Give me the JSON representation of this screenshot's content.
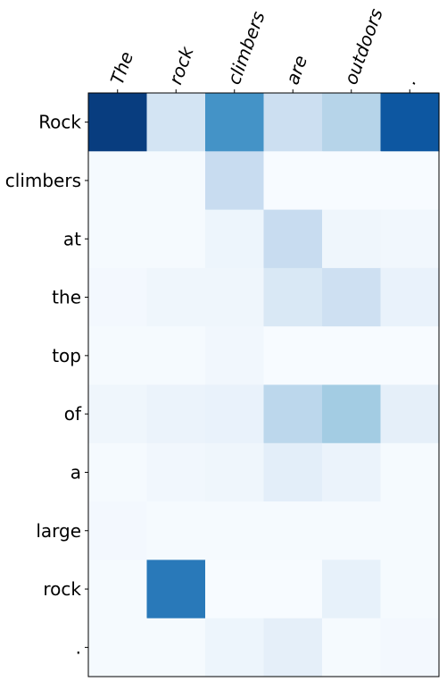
{
  "chart_data": {
    "type": "heatmap",
    "x_labels": [
      "The",
      "rock",
      "climbers",
      "are",
      "outdoors",
      "."
    ],
    "y_labels": [
      "Rock",
      "climbers",
      "at",
      "the",
      "top",
      "of",
      "a",
      "large",
      "rock",
      "."
    ],
    "values": [
      [
        0.95,
        0.18,
        0.62,
        0.22,
        0.3,
        0.85
      ],
      [
        0.01,
        0.01,
        0.24,
        0.0,
        0.0,
        0.0
      ],
      [
        0.01,
        0.01,
        0.05,
        0.24,
        0.04,
        0.03
      ],
      [
        0.02,
        0.04,
        0.04,
        0.15,
        0.21,
        0.07
      ],
      [
        0.01,
        0.01,
        0.03,
        0.0,
        0.0,
        0.0
      ],
      [
        0.04,
        0.06,
        0.07,
        0.28,
        0.36,
        0.09
      ],
      [
        0.01,
        0.03,
        0.04,
        0.1,
        0.06,
        0.01
      ],
      [
        0.02,
        0.01,
        0.01,
        0.01,
        0.01,
        0.01
      ],
      [
        0.01,
        0.72,
        0.0,
        0.0,
        0.08,
        0.01
      ],
      [
        0.01,
        0.01,
        0.05,
        0.09,
        0.01,
        0.02
      ]
    ],
    "colormap": "Blues",
    "value_range": [
      0,
      1
    ],
    "x_tick_position": "top",
    "x_tick_rotation_deg": 70,
    "grid": false,
    "colors": {
      "low": "#f7fbff",
      "high": "#08306b",
      "frame": "#000000"
    }
  }
}
